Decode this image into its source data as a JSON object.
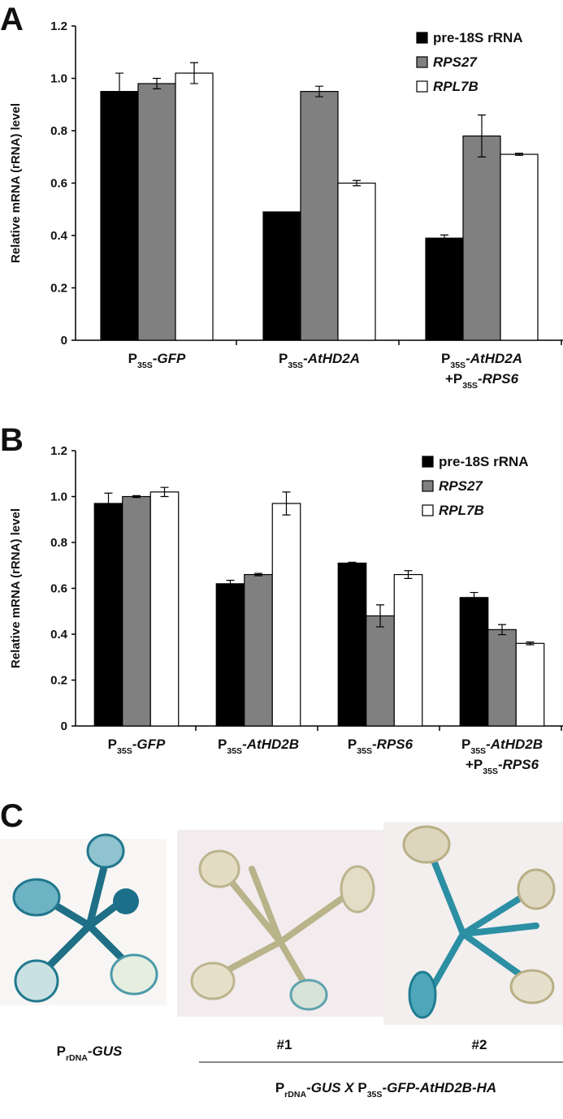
{
  "chart_data": [
    {
      "type": "bar",
      "panel_label": "A",
      "y_label": "Relative mRNA (rRNA) level",
      "categories": [
        [
          [
            {
              "t": "P"
            },
            {
              "t": "35S",
              "sub": true
            },
            {
              "t": "-GFP",
              "i": true
            }
          ]
        ],
        [
          [
            {
              "t": "P"
            },
            {
              "t": "35S",
              "sub": true
            },
            {
              "t": "-AtHD2A",
              "i": true
            }
          ]
        ],
        [
          [
            {
              "t": "P"
            },
            {
              "t": "35S",
              "sub": true
            },
            {
              "t": "-AtHD2A",
              "i": true
            }
          ],
          [
            {
              "t": "+P"
            },
            {
              "t": "35S",
              "sub": true
            },
            {
              "t": "-RPS6",
              "i": true
            }
          ]
        ]
      ],
      "series": [
        {
          "name": "pre-18S rRNA",
          "italic": false,
          "color": "#000000",
          "values": [
            0.95,
            0.49,
            0.39
          ],
          "errors": [
            0.07,
            null,
            0.012
          ]
        },
        {
          "name": "RPS27",
          "italic": true,
          "color": "#808080",
          "values": [
            0.98,
            0.95,
            0.78
          ],
          "errors": [
            0.02,
            0.02,
            0.08
          ]
        },
        {
          "name": "RPL7B",
          "italic": true,
          "color": "#ffffff",
          "values": [
            1.02,
            0.6,
            0.71
          ],
          "errors": [
            0.04,
            0.01,
            0.004
          ]
        }
      ],
      "ylim": [
        0,
        1.2
      ],
      "yticks": [
        0,
        0.2,
        0.4,
        0.6,
        0.8,
        {
          "value": 1,
          "label": "1.0"
        },
        1.2
      ],
      "grid": false,
      "legend": "upper-right"
    },
    {
      "type": "bar",
      "panel_label": "B",
      "y_label": "Relative mRNA (rRNA) level",
      "categories": [
        [
          [
            {
              "t": "P"
            },
            {
              "t": "35S",
              "sub": true
            },
            {
              "t": "-GFP",
              "i": true
            }
          ]
        ],
        [
          [
            {
              "t": "P"
            },
            {
              "t": "35S",
              "sub": true
            },
            {
              "t": "-AtHD2B",
              "i": true
            }
          ]
        ],
        [
          [
            {
              "t": "P"
            },
            {
              "t": "35S",
              "sub": true
            },
            {
              "t": "-RPS6",
              "i": true
            }
          ]
        ],
        [
          [
            {
              "t": "P"
            },
            {
              "t": "35S",
              "sub": true
            },
            {
              "t": "-AtHD2B",
              "i": true
            }
          ],
          [
            {
              "t": "+P"
            },
            {
              "t": "35S",
              "sub": true
            },
            {
              "t": "-RPS6",
              "i": true
            }
          ]
        ]
      ],
      "series": [
        {
          "name": "pre-18S rRNA",
          "italic": false,
          "color": "#000000",
          "values": [
            0.97,
            0.62,
            0.71,
            0.56
          ],
          "errors": [
            0.045,
            0.015,
            0.004,
            0.022
          ]
        },
        {
          "name": "RPS27",
          "italic": true,
          "color": "#808080",
          "values": [
            1.0,
            0.66,
            0.48,
            0.42
          ],
          "errors": [
            0.004,
            0.005,
            0.048,
            0.022
          ]
        },
        {
          "name": "RPL7B",
          "italic": true,
          "color": "#ffffff",
          "values": [
            1.02,
            0.97,
            0.66,
            0.36
          ],
          "errors": [
            0.02,
            0.05,
            0.017,
            0.006
          ]
        }
      ],
      "ylim": [
        0,
        1.2
      ],
      "yticks": [
        0,
        0.2,
        0.4,
        0.6,
        0.8,
        {
          "value": 1,
          "label": "1.0"
        },
        1.2
      ],
      "grid": false,
      "legend": "upper-right"
    }
  ],
  "panel_c": {
    "panel_label": "C",
    "caption_left": [
      [
        {
          "t": "P"
        },
        {
          "t": "rDNA",
          "sub": true
        },
        {
          "t": "-GUS",
          "i": true
        }
      ]
    ],
    "line_labels": [
      "#1",
      "#2"
    ],
    "caption_right": [
      [
        {
          "t": "P"
        },
        {
          "t": "rDNA",
          "sub": true
        },
        {
          "t": "-GUS X",
          "i": true
        },
        {
          "t": " P"
        },
        {
          "t": "35S",
          "sub": true
        },
        {
          "t": "-GFP-AtHD2B-HA",
          "i": true
        }
      ]
    ]
  }
}
